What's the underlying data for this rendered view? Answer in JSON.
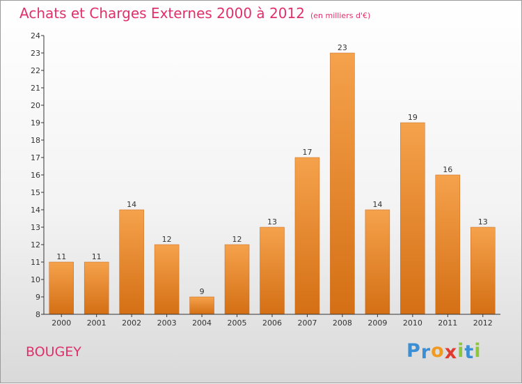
{
  "title": "Achats et Charges Externes 2000 à 2012",
  "subtitle": "(en milliers d'€)",
  "commune": "BOUGEY",
  "logo": {
    "letters": [
      "P",
      "r",
      "o",
      "x",
      "i",
      "t",
      "i"
    ],
    "colors": [
      "#3b8fd4",
      "#3b8fd4",
      "#f29a1f",
      "#e03a2f",
      "#8cc63e",
      "#3b8fd4",
      "#8cc63e"
    ]
  },
  "colors": {
    "bar_light": "#f5a24c",
    "bar_dark": "#d46f14",
    "title": "#e0306a",
    "axis": "#333333"
  },
  "chart_data": {
    "type": "bar",
    "categories": [
      "2000",
      "2001",
      "2002",
      "2003",
      "2004",
      "2005",
      "2006",
      "2007",
      "2008",
      "2009",
      "2010",
      "2011",
      "2012"
    ],
    "values": [
      11,
      11,
      14,
      12,
      9,
      12,
      13,
      17,
      23,
      14,
      19,
      16,
      13
    ],
    "title": "Achats et Charges Externes 2000 à 2012",
    "xlabel": "",
    "ylabel": "",
    "ylim": [
      8,
      24
    ],
    "yticks": [
      8,
      9,
      10,
      11,
      12,
      13,
      14,
      15,
      16,
      17,
      18,
      19,
      20,
      21,
      22,
      23,
      24
    ],
    "grid": false,
    "data_labels": true
  }
}
